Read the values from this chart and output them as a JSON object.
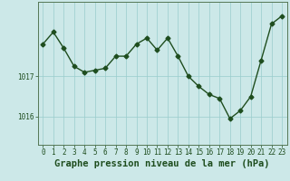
{
  "x": [
    0,
    1,
    2,
    3,
    4,
    5,
    6,
    7,
    8,
    9,
    10,
    11,
    12,
    13,
    14,
    15,
    16,
    17,
    18,
    19,
    20,
    21,
    22,
    23
  ],
  "y": [
    1017.8,
    1018.1,
    1017.7,
    1017.25,
    1017.1,
    1017.15,
    1017.2,
    1017.5,
    1017.5,
    1017.8,
    1017.95,
    1017.65,
    1017.95,
    1017.5,
    1017.0,
    1016.75,
    1016.55,
    1016.45,
    1015.95,
    1016.15,
    1016.5,
    1017.4,
    1018.3,
    1018.5
  ],
  "line_color": "#1e4d1e",
  "marker": "D",
  "markersize": 2.5,
  "linewidth": 1.0,
  "bg_color": "#cce8e8",
  "plot_bg_color": "#cce8e8",
  "grid_color": "#99cccc",
  "axis_color": "#557755",
  "title": "Graphe pression niveau de la mer (hPa)",
  "title_fontsize": 7.5,
  "title_color": "#1e4d1e",
  "title_weight": "bold",
  "yticks": [
    1016,
    1017
  ],
  "ytick_labels": [
    "1016",
    "1017"
  ],
  "ylim": [
    1015.3,
    1018.85
  ],
  "xlim": [
    -0.5,
    23.5
  ],
  "xtick_labels": [
    "0",
    "1",
    "2",
    "3",
    "4",
    "5",
    "6",
    "7",
    "8",
    "9",
    "10",
    "11",
    "12",
    "13",
    "14",
    "15",
    "16",
    "17",
    "18",
    "19",
    "20",
    "21",
    "22",
    "23"
  ],
  "tick_fontsize": 5.5,
  "tick_color": "#1e4d1e"
}
